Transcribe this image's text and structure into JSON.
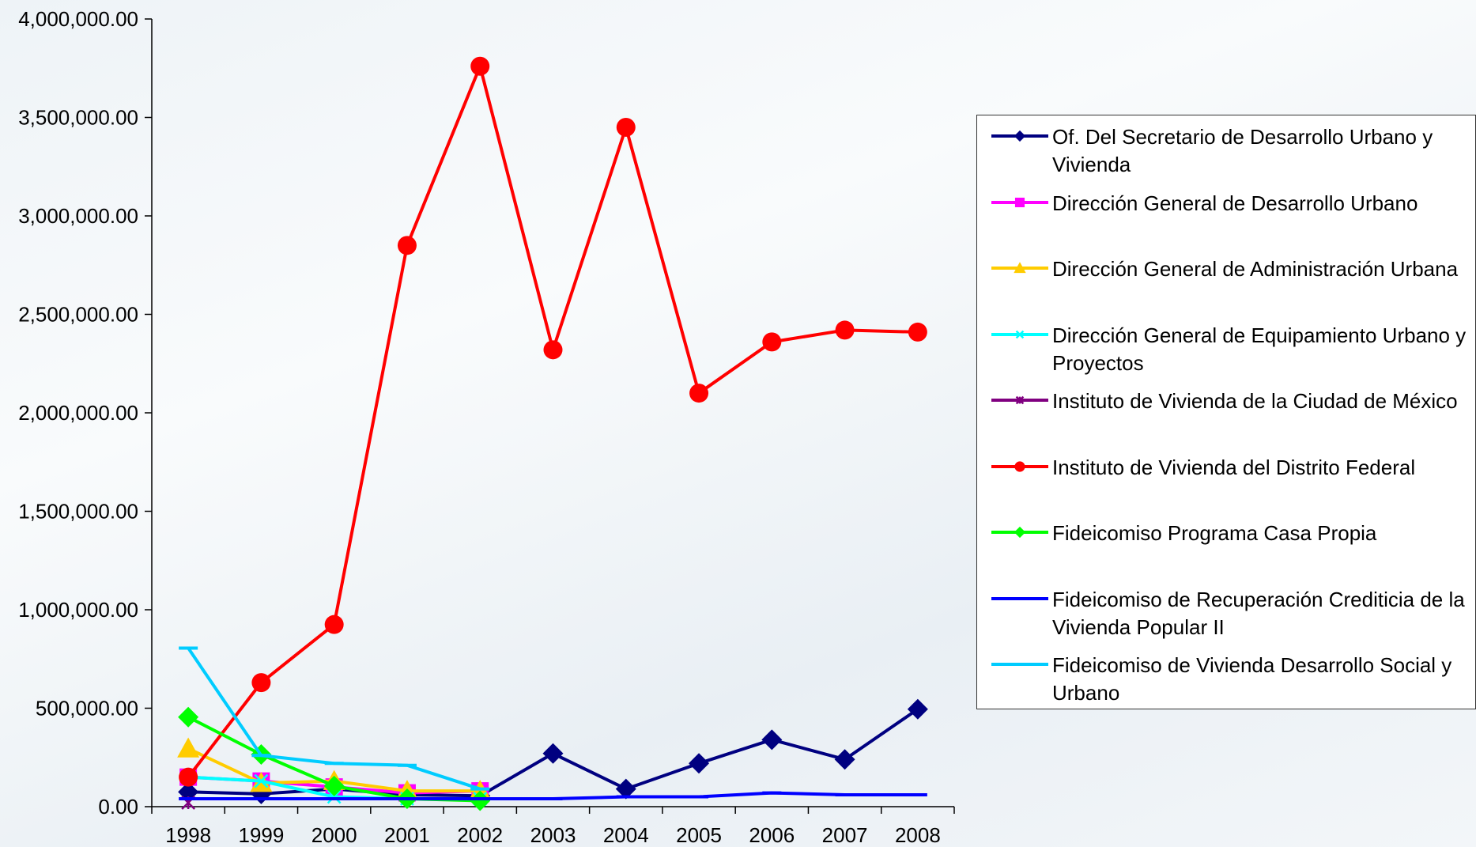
{
  "chart_data": {
    "type": "line",
    "title": "",
    "xlabel": "",
    "ylabel": "",
    "ylim": [
      0,
      4000000
    ],
    "yticks": [
      "0.00",
      "500,000.00",
      "1,000,000.00",
      "1,500,000.00",
      "2,000,000.00",
      "2,500,000.00",
      "3,000,000.00",
      "3,500,000.00",
      "4,000,000.00"
    ],
    "categories": [
      "1998",
      "1999",
      "2000",
      "2001",
      "2002",
      "2003",
      "2004",
      "2005",
      "2006",
      "2007",
      "2008"
    ],
    "legend_position": "right",
    "grid": false,
    "series": [
      {
        "name": "Of. Del Secretario de Desarrollo Urbano y Vivienda",
        "color": "#000080",
        "marker": "diamond",
        "values": [
          75000,
          65000,
          90000,
          60000,
          55000,
          270000,
          90000,
          220000,
          340000,
          240000,
          495000
        ]
      },
      {
        "name": "Dirección General de Desarrollo Urbano",
        "color": "#ff00ff",
        "marker": "square",
        "values": [
          150000,
          130000,
          100000,
          70000,
          80000,
          null,
          null,
          null,
          null,
          null,
          null
        ]
      },
      {
        "name": "Dirección General de Administración Urbana",
        "color": "#ffcc00",
        "marker": "triangle",
        "values": [
          295000,
          120000,
          130000,
          80000,
          80000,
          null,
          null,
          null,
          null,
          null,
          null
        ]
      },
      {
        "name": "Dirección General de Equipamiento Urbano y Proyectos",
        "color": "#00ffff",
        "marker": "x",
        "values": [
          150000,
          130000,
          50000,
          40000,
          40000,
          null,
          null,
          null,
          null,
          null,
          null
        ]
      },
      {
        "name": "Instituto de Vivienda de la Ciudad de México",
        "color": "#800080",
        "marker": "star",
        "values": [
          20000,
          null,
          null,
          null,
          null,
          null,
          null,
          null,
          null,
          null,
          null
        ]
      },
      {
        "name": "Instituto de Vivienda del Distrito Federal",
        "color": "#ff0000",
        "marker": "circle",
        "values": [
          150000,
          630000,
          925000,
          2850000,
          3760000,
          2320000,
          3450000,
          2100000,
          2360000,
          2420000,
          2410000
        ]
      },
      {
        "name": "Fideicomiso Programa Casa Propia",
        "color": "#00ff00",
        "marker": "diamond",
        "values": [
          455000,
          265000,
          105000,
          40000,
          30000,
          null,
          null,
          null,
          null,
          null,
          null
        ]
      },
      {
        "name": "Fideicomiso de Recuperación Crediticia de la Vivienda Popular II",
        "color": "#0000ff",
        "marker": "dash",
        "values": [
          40000,
          40000,
          40000,
          40000,
          40000,
          40000,
          50000,
          50000,
          70000,
          60000,
          60000
        ]
      },
      {
        "name": "Fideicomiso de Vivienda Desarrollo Social y Urbano",
        "color": "#00ccff",
        "marker": "dash",
        "values": [
          805000,
          260000,
          220000,
          210000,
          90000,
          null,
          null,
          null,
          null,
          null,
          null
        ]
      }
    ]
  }
}
